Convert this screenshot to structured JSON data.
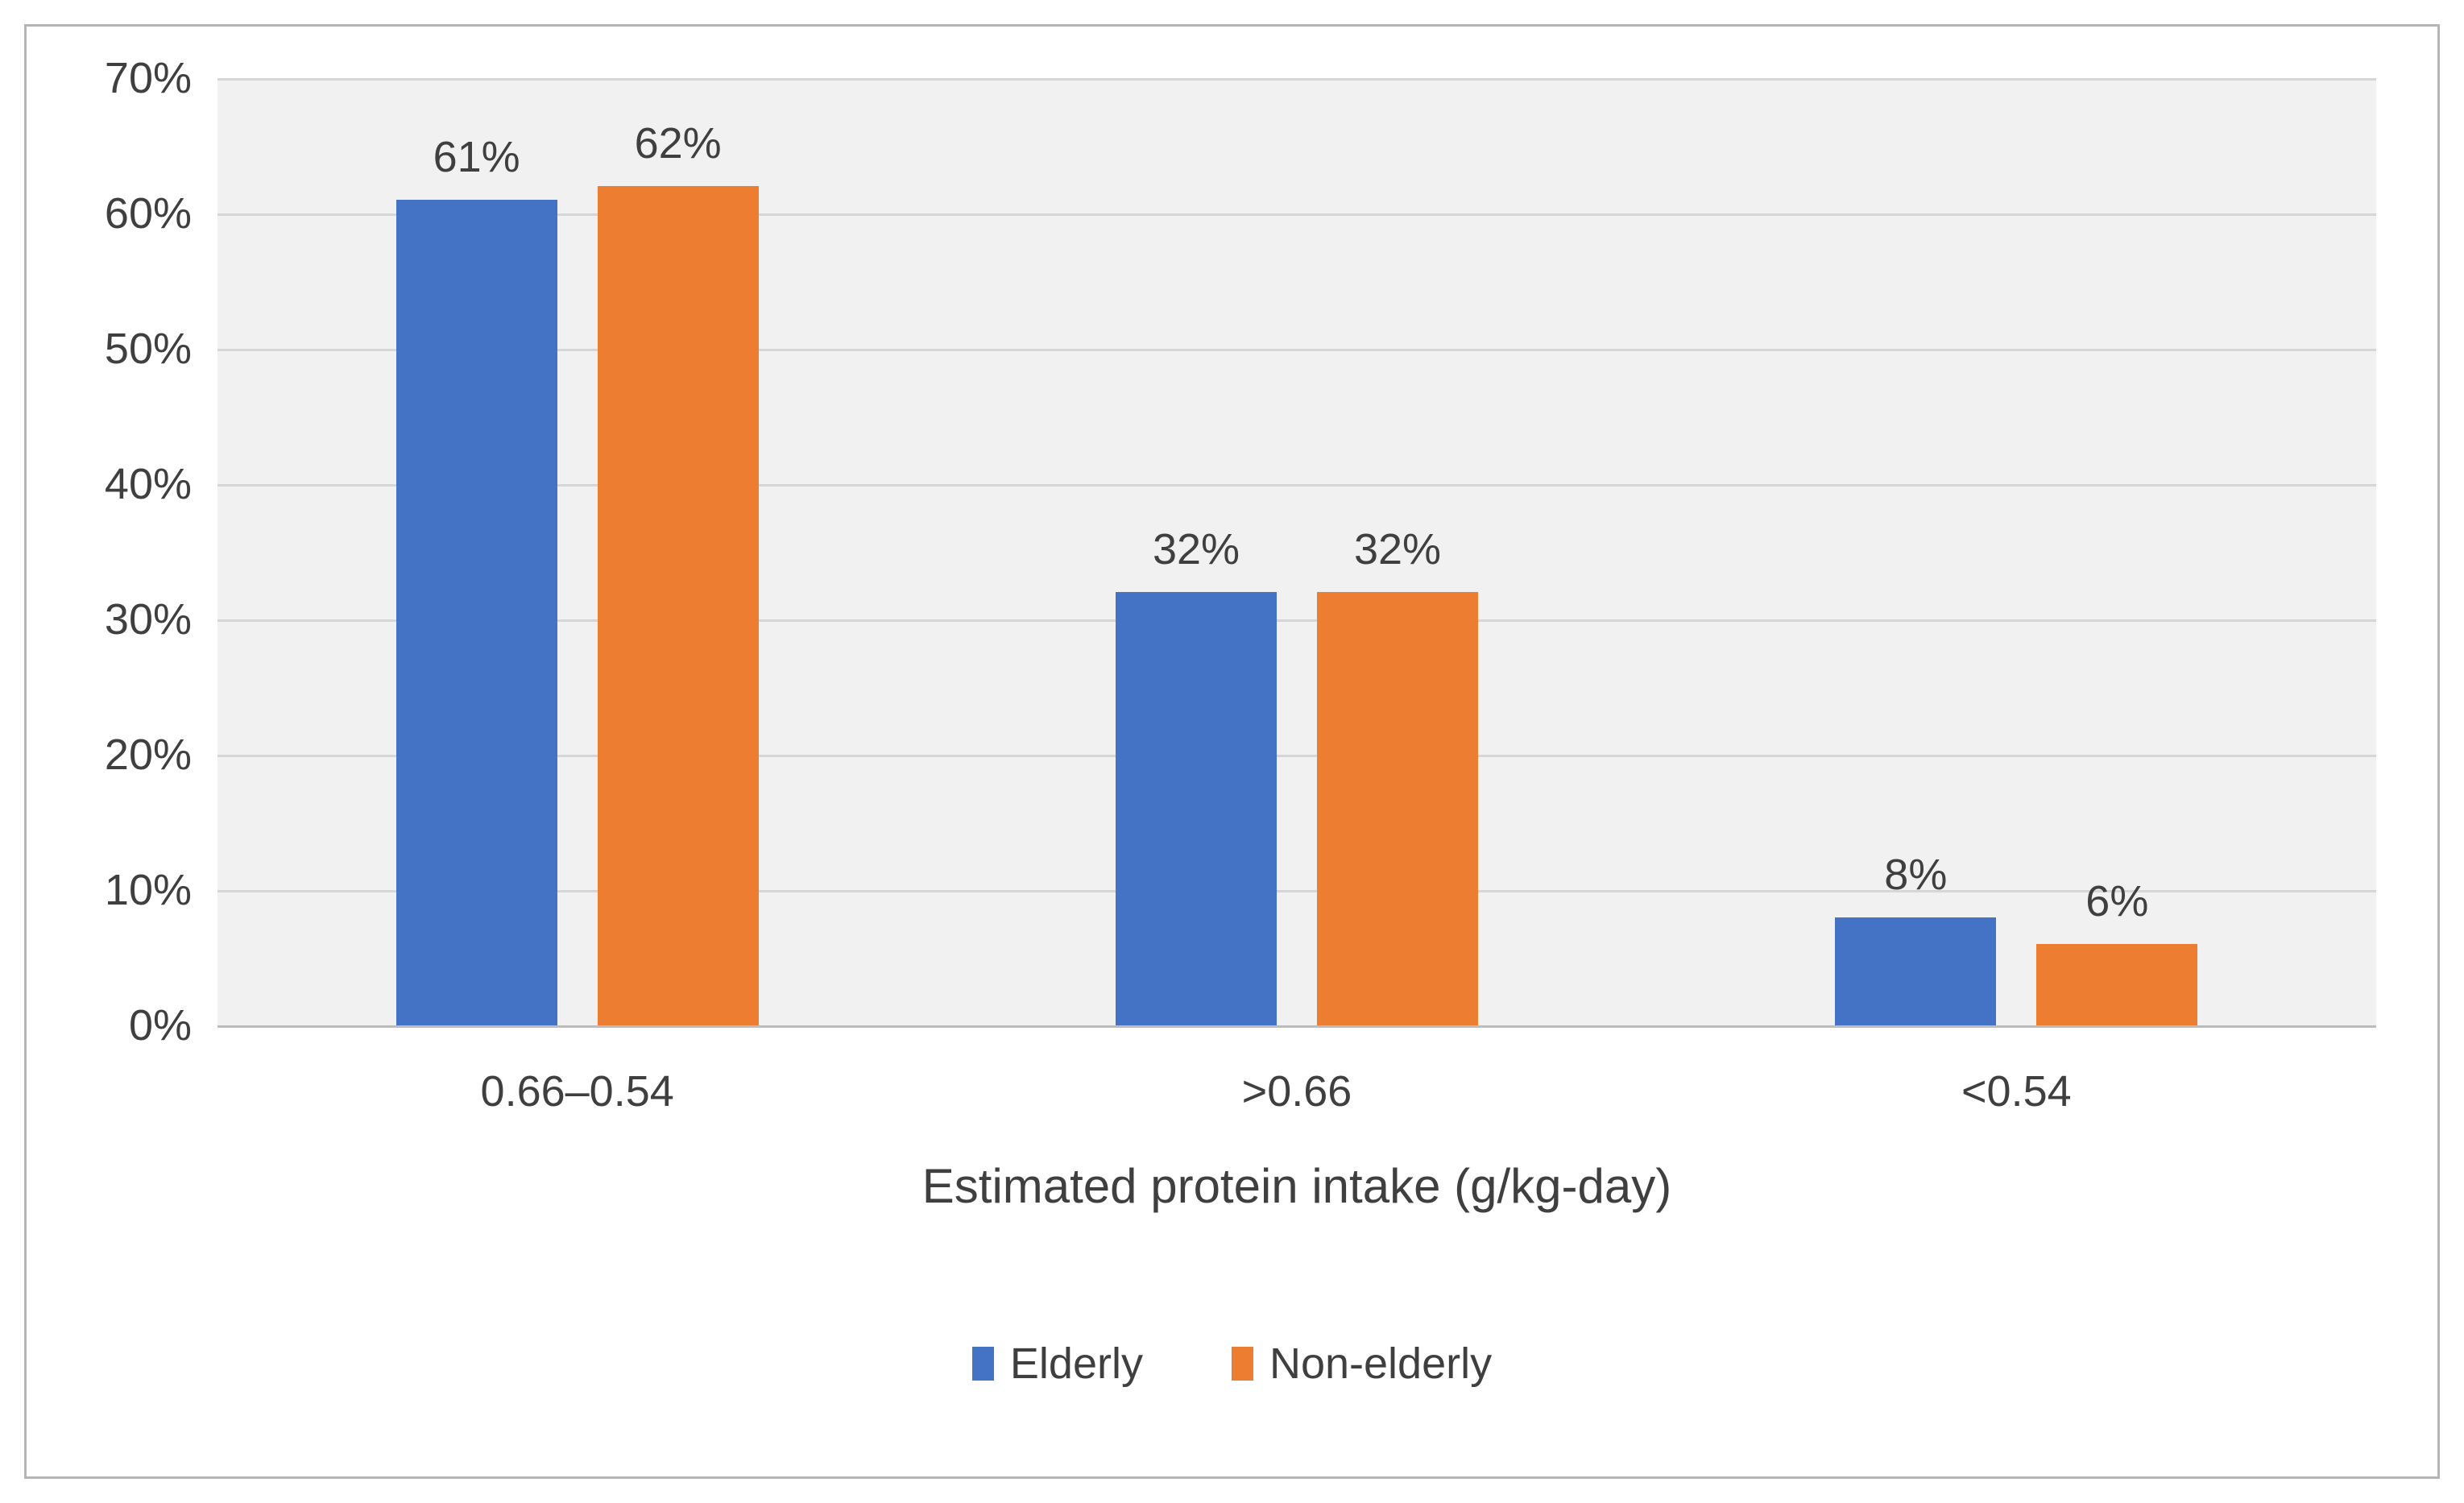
{
  "figure": {
    "border_color": "#b5b5b5",
    "background": "#ffffff"
  },
  "chart_data": {
    "type": "bar",
    "title": "",
    "xlabel": "Estimated protein intake (g/kg-day)",
    "ylabel": "",
    "categories": [
      "0.66–0.54",
      ">0.66",
      "<0.54"
    ],
    "series": [
      {
        "name": "Elderly",
        "color": "#4472C4",
        "values": [
          61,
          32,
          8
        ]
      },
      {
        "name": "Non-elderly",
        "color": "#ED7D31",
        "values": [
          62,
          32,
          6
        ]
      }
    ],
    "value_labels": [
      [
        "61%",
        "62%"
      ],
      [
        "32%",
        "32%"
      ],
      [
        "8%",
        "6%"
      ]
    ],
    "ylim": [
      0,
      70
    ],
    "ytick_step": 10,
    "yticks": [
      "0%",
      "10%",
      "20%",
      "30%",
      "40%",
      "50%",
      "60%",
      "70%"
    ],
    "grid": true,
    "legend_position": "bottom",
    "legend_labels": [
      "Elderly",
      "Non-elderly"
    ],
    "plot_bg": "#f1f1f1",
    "gridline_color": "#d6d6d6",
    "axis_line_color": "#bcbcbc",
    "text_color": "#3f3f3f"
  }
}
